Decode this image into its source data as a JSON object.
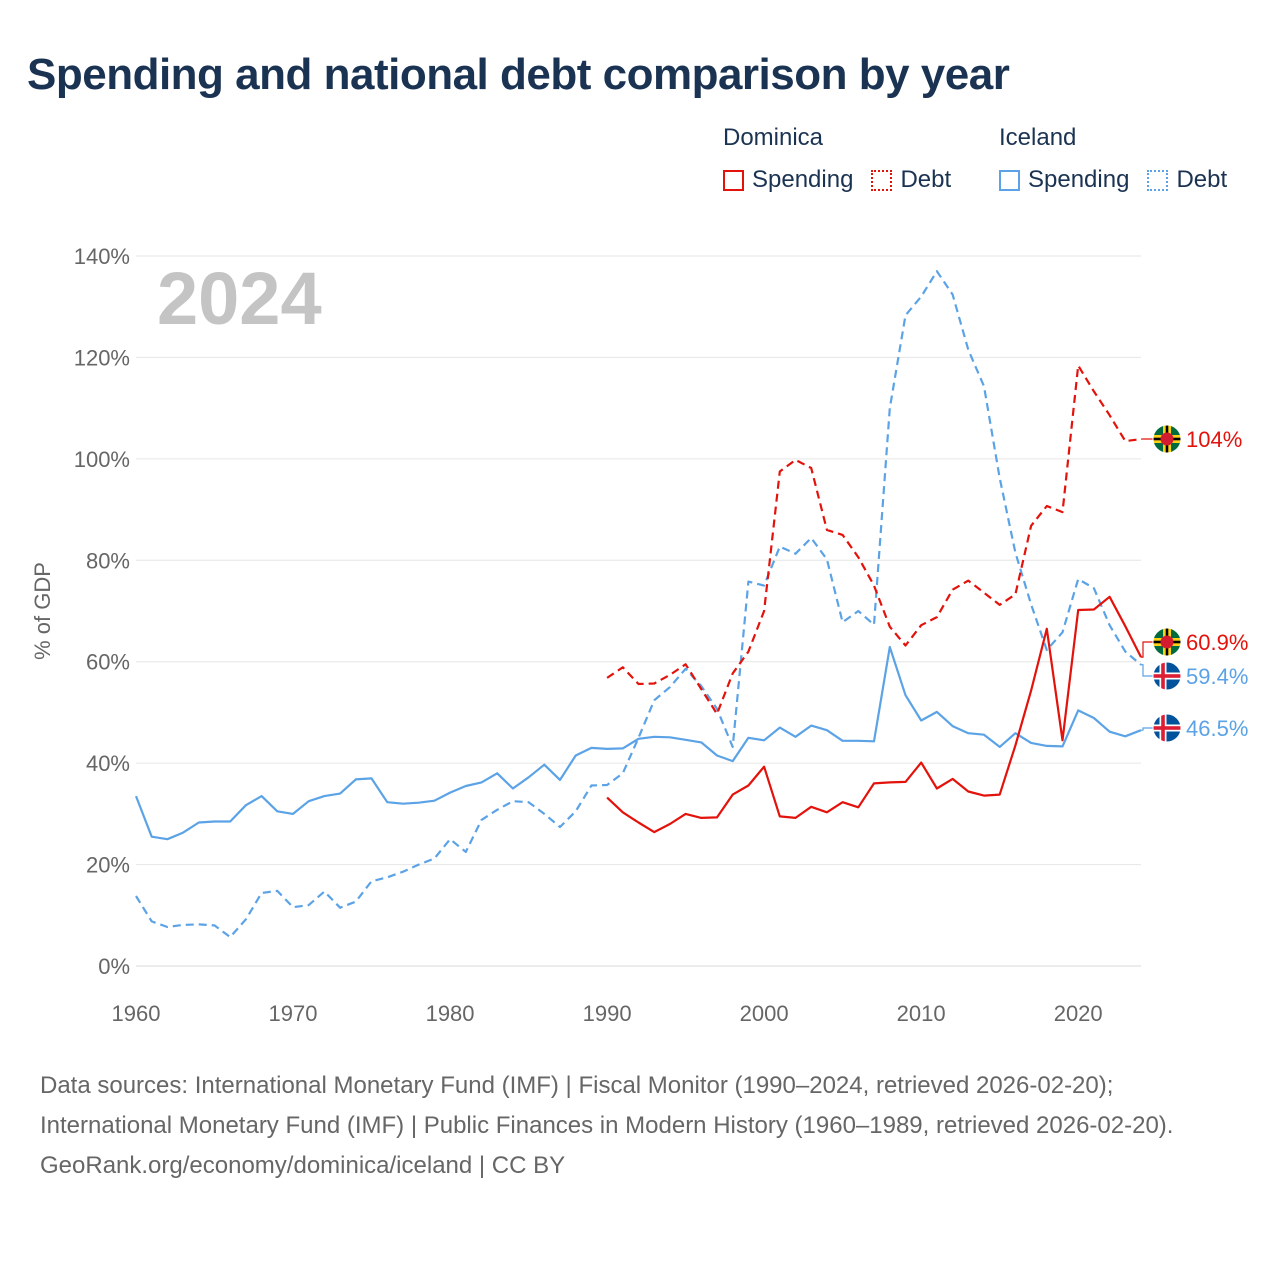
{
  "title": "Spending and national debt comparison by year",
  "year_label": "2024",
  "legend": [
    {
      "country": "Dominica",
      "color": "#e3120b",
      "items": [
        "Spending",
        "Debt"
      ]
    },
    {
      "country": "Iceland",
      "color": "#5ba3e6",
      "items": [
        "Spending",
        "Debt"
      ]
    }
  ],
  "chart_data": {
    "type": "line",
    "ylabel": "% of GDP",
    "xlabel": "",
    "xlim": [
      1960,
      2024
    ],
    "ylim": [
      0,
      140
    ],
    "xticks": [
      1960,
      1970,
      1980,
      1990,
      2000,
      2010,
      2020
    ],
    "yticks": [
      0,
      20,
      40,
      60,
      80,
      100,
      120,
      140
    ],
    "ytick_labels": [
      "0%",
      "20%",
      "40%",
      "60%",
      "80%",
      "100%",
      "120%",
      "140%"
    ],
    "series": [
      {
        "name": "Iceland Spending",
        "country": "Iceland",
        "color": "#5ba3e6",
        "dash": false,
        "end_label": "46.5%",
        "end_value": 46.5,
        "flag": "iceland",
        "x": [
          1960,
          1961,
          1962,
          1963,
          1964,
          1965,
          1966,
          1967,
          1968,
          1969,
          1970,
          1971,
          1972,
          1973,
          1974,
          1975,
          1976,
          1977,
          1978,
          1979,
          1980,
          1981,
          1982,
          1983,
          1984,
          1985,
          1986,
          1987,
          1988,
          1989,
          1990,
          1991,
          1992,
          1993,
          1994,
          1995,
          1996,
          1997,
          1998,
          1999,
          2000,
          2001,
          2002,
          2003,
          2004,
          2005,
          2006,
          2007,
          2008,
          2009,
          2010,
          2011,
          2012,
          2013,
          2014,
          2015,
          2016,
          2017,
          2018,
          2019,
          2020,
          2021,
          2022,
          2023,
          2024
        ],
        "values": [
          33.5,
          25.5,
          25,
          26.3,
          28.3,
          28.5,
          28.5,
          31.7,
          33.5,
          30.5,
          30,
          32.5,
          33.5,
          34,
          36.8,
          37,
          32.3,
          32,
          32.2,
          32.6,
          34.2,
          35.5,
          36.2,
          38,
          35,
          37.2,
          39.7,
          36.7,
          41.5,
          43,
          42.8,
          42.9,
          44.8,
          45.2,
          45.1,
          44.6,
          44.1,
          41.5,
          40.4,
          45,
          44.5,
          47,
          45.2,
          47.4,
          46.5,
          44.4,
          44.4,
          44.3,
          62.9,
          53.4,
          48.4,
          50.1,
          47.3,
          45.9,
          45.6,
          43.2,
          45.9,
          44,
          43.4,
          43.3,
          50.4,
          48.9,
          46.2,
          45.3,
          46.5
        ]
      },
      {
        "name": "Iceland Debt",
        "country": "Iceland",
        "color": "#5ba3e6",
        "dash": true,
        "end_label": "59.4%",
        "end_value": 59.4,
        "flag": "iceland",
        "x": [
          1960,
          1961,
          1962,
          1963,
          1964,
          1965,
          1966,
          1967,
          1968,
          1969,
          1970,
          1971,
          1972,
          1973,
          1974,
          1975,
          1976,
          1977,
          1978,
          1979,
          1980,
          1981,
          1982,
          1983,
          1984,
          1985,
          1986,
          1987,
          1988,
          1989,
          1990,
          1991,
          1992,
          1993,
          1994,
          1995,
          1996,
          1997,
          1998,
          1999,
          2000,
          2001,
          2002,
          2003,
          2004,
          2005,
          2006,
          2007,
          2008,
          2009,
          2010,
          2011,
          2012,
          2013,
          2014,
          2015,
          2016,
          2017,
          2018,
          2019,
          2020,
          2021,
          2022,
          2023,
          2024
        ],
        "values": [
          13.8,
          8.8,
          7.7,
          8.1,
          8.2,
          8,
          5.7,
          9.2,
          14.4,
          14.8,
          11.6,
          12,
          14.7,
          11.5,
          12.7,
          16.7,
          17.5,
          18.6,
          20,
          21.2,
          25,
          22.5,
          28.8,
          30.8,
          32.5,
          32.3,
          30,
          27.4,
          30.5,
          35.6,
          35.7,
          38,
          45,
          52.4,
          55,
          58.6,
          55.2,
          50.7,
          43.2,
          75.8,
          75,
          82.7,
          81.3,
          84.4,
          80.2,
          67.8,
          70,
          67.3,
          110,
          128.3,
          132,
          137,
          132.4,
          121.5,
          114.3,
          96.2,
          81.5,
          71.3,
          62.3,
          65.8,
          76.3,
          74.5,
          67.2,
          62,
          59.4
        ]
      },
      {
        "name": "Dominica Spending",
        "country": "Dominica",
        "color": "#e3120b",
        "dash": false,
        "end_label": "60.9%",
        "end_value": 60.9,
        "flag": "dominica",
        "x": [
          1990,
          1991,
          1992,
          1993,
          1994,
          1995,
          1996,
          1997,
          1998,
          1999,
          2000,
          2001,
          2002,
          2003,
          2004,
          2005,
          2006,
          2007,
          2008,
          2009,
          2010,
          2011,
          2012,
          2013,
          2014,
          2015,
          2016,
          2017,
          2018,
          2019,
          2020,
          2021,
          2022,
          2023,
          2024
        ],
        "values": [
          33.2,
          30.3,
          28.3,
          26.4,
          28,
          30,
          29.2,
          29.3,
          33.8,
          35.6,
          39.3,
          29.5,
          29.2,
          31.4,
          30.3,
          32.3,
          31.3,
          36,
          36.2,
          36.3,
          40.1,
          35,
          36.9,
          34.4,
          33.6,
          33.8,
          43.5,
          54.3,
          66.5,
          44.5,
          70.2,
          70.3,
          72.8,
          67,
          60.9
        ]
      },
      {
        "name": "Dominica Debt",
        "country": "Dominica",
        "color": "#e3120b",
        "dash": true,
        "end_label": "104%",
        "end_value": 103.9,
        "flag": "dominica",
        "x": [
          1990,
          1991,
          1992,
          1993,
          1994,
          1995,
          1996,
          1997,
          1998,
          1999,
          2000,
          2001,
          2002,
          2003,
          2004,
          2005,
          2006,
          2007,
          2008,
          2009,
          2010,
          2011,
          2012,
          2013,
          2014,
          2015,
          2016,
          2017,
          2018,
          2019,
          2020,
          2021,
          2022,
          2023,
          2024
        ],
        "values": [
          56.8,
          58.9,
          55.6,
          55.7,
          57.4,
          59.5,
          54.6,
          49.7,
          57.7,
          62,
          70,
          97.5,
          99.8,
          98.2,
          86,
          85,
          80.6,
          75,
          66.9,
          63.2,
          67.2,
          68.8,
          74.2,
          76,
          73.6,
          71.2,
          73.3,
          86.8,
          90.7,
          89.5,
          118.4,
          113.3,
          108.6,
          103.5,
          103.9
        ]
      }
    ]
  },
  "footer": {
    "sources": "Data sources: International Monetary Fund (IMF) | Fiscal Monitor (1990–2024, retrieved 2026-02-20); International Monetary Fund (IMF) | Public Finances in Modern History (1960–1989, retrieved 2026-02-20).",
    "credit": "GeoRank.org/economy/dominica/iceland | CC BY"
  }
}
